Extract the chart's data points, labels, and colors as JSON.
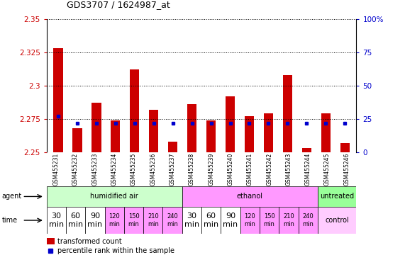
{
  "title": "GDS3707 / 1624987_at",
  "samples": [
    "GSM455231",
    "GSM455232",
    "GSM455233",
    "GSM455234",
    "GSM455235",
    "GSM455236",
    "GSM455237",
    "GSM455238",
    "GSM455239",
    "GSM455240",
    "GSM455241",
    "GSM455242",
    "GSM455243",
    "GSM455244",
    "GSM455245",
    "GSM455246"
  ],
  "transformed_count": [
    2.328,
    2.268,
    2.287,
    2.274,
    2.312,
    2.282,
    2.258,
    2.286,
    2.274,
    2.292,
    2.277,
    2.279,
    2.308,
    2.253,
    2.279,
    2.257
  ],
  "percentile_rank": [
    27,
    22,
    22,
    22,
    22,
    22,
    22,
    22,
    22,
    22,
    22,
    22,
    22,
    22,
    22,
    22
  ],
  "bar_color": "#cc0000",
  "dot_color": "#0000cc",
  "ymin": 2.25,
  "ymax": 2.35,
  "yticks": [
    2.25,
    2.275,
    2.3,
    2.325,
    2.35
  ],
  "y2ticks": [
    0,
    25,
    50,
    75,
    100
  ],
  "y2ticklabels": [
    "0",
    "25",
    "50",
    "75",
    "100%"
  ],
  "agent_groups": [
    {
      "label": "humidified air",
      "start": 0,
      "end": 7,
      "color": "#ccffcc"
    },
    {
      "label": "ethanol",
      "start": 7,
      "end": 14,
      "color": "#ff99ff"
    },
    {
      "label": "untreated",
      "start": 14,
      "end": 16,
      "color": "#99ff99"
    }
  ],
  "time_labels": [
    "30\nmin",
    "60\nmin",
    "90\nmin",
    "120\nmin",
    "150\nmin",
    "210\nmin",
    "240\nmin",
    "30\nmin",
    "60\nmin",
    "90\nmin",
    "120\nmin",
    "150\nmin",
    "210\nmin",
    "240\nmin"
  ],
  "time_colors": [
    "#ffffff",
    "#ffffff",
    "#ffffff",
    "#ff99ff",
    "#ff99ff",
    "#ff99ff",
    "#ff99ff",
    "#ffffff",
    "#ffffff",
    "#ffffff",
    "#ff99ff",
    "#ff99ff",
    "#ff99ff",
    "#ff99ff"
  ],
  "time_fontsizes": [
    8,
    8,
    8,
    6,
    6,
    6,
    6,
    8,
    8,
    8,
    6,
    6,
    6,
    6
  ],
  "control_color": "#ffccff",
  "background_color": "#ffffff",
  "sample_bg_color": "#cccccc",
  "fig_width": 5.71,
  "fig_height": 3.84,
  "dpi": 100
}
